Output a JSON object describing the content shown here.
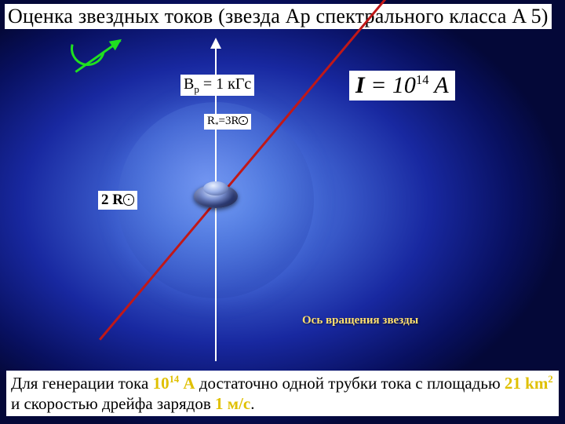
{
  "title": "Оценка звездных токов (звезда Ap спектрального класса A 5)",
  "field": {
    "label_prefix": "B",
    "sub": "p",
    "eq": " = 1 кГс"
  },
  "current": {
    "I": "I",
    "eq": " = 10",
    "exp": "14",
    "unit": " A"
  },
  "rstar": {
    "lhs_prefix": "R",
    "lhs_sub": "*",
    "eq": "=3R"
  },
  "twoR": "2 R",
  "axis_caption": "Ось вращения звезды",
  "bottom": {
    "t1": "Для генерации тока ",
    "h1a": "10",
    "h1exp": "14",
    "h1b": " A",
    "t2": " достаточно одной трубки тока с площадью ",
    "h2a": "21 km",
    "h2exp": "2",
    "t3": " и скоростью дрейфа зарядов ",
    "h3": "1 м/с",
    "t4": "."
  },
  "colors": {
    "mag_axis": "#c01818",
    "rot_arrow": "#20e020",
    "highlight": "#e0c000"
  }
}
